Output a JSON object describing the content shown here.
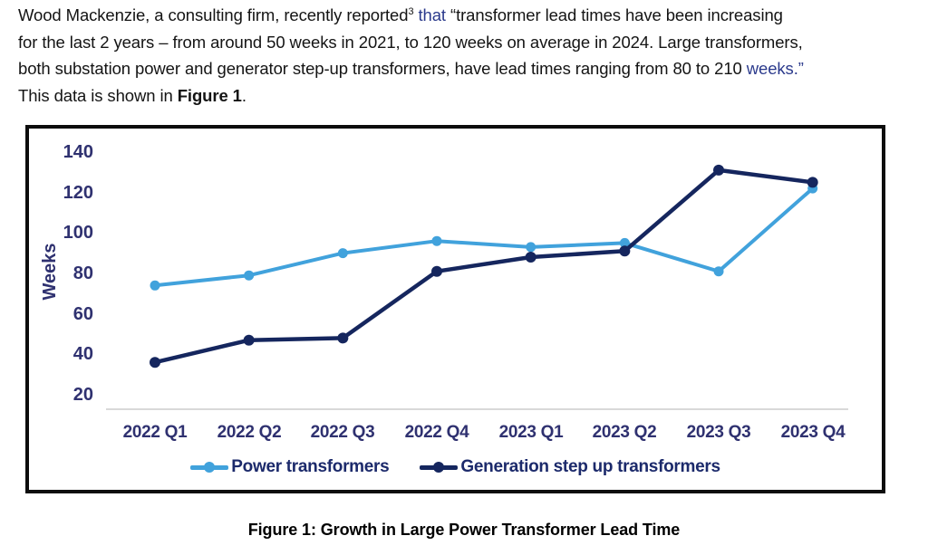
{
  "intro": {
    "line1_a": "Wood Mackenzie, a consulting firm, recently reported",
    "line1_sup": "3",
    "line1_that": " that ",
    "line1_b": "“transformer lead times have been increasing",
    "line2": "for the last 2 years – from around 50 weeks in 2021, to 120 weeks on average in 2024. Large transformers,",
    "line3_a": "both substation power and generator step-up transformers, have lead times ranging from 80 to 210 ",
    "line3_b": "weeks.”",
    "line4_a": "This data is shown in ",
    "line4_b": "Figure 1",
    "line4_c": "."
  },
  "figure": {
    "caption": "Figure 1: Growth in Large Power Transformer Lead Time"
  },
  "chart_data": {
    "type": "line",
    "title": "",
    "categories": [
      "2022 Q1",
      "2022 Q2",
      "2022 Q3",
      "2022 Q4",
      "2023 Q1",
      "2023 Q2",
      "2023 Q3",
      "2023 Q4"
    ],
    "series": [
      {
        "name": "Power transformers",
        "color": "#41a2dc",
        "values": [
          74,
          79,
          90,
          96,
          93,
          95,
          81,
          122
        ]
      },
      {
        "name": "Generation step up transformers",
        "color": "#15265e",
        "values": [
          36,
          47,
          48,
          81,
          88,
          91,
          131,
          125
        ]
      }
    ],
    "ylabel": "Weeks",
    "xlabel": "",
    "yticks": [
      140,
      120,
      100,
      80,
      60,
      40,
      20
    ],
    "ylim": [
      13,
      148
    ],
    "grid": false,
    "legend_position": "bottom"
  },
  "colors": {
    "power_line": "#41a2dc",
    "gsu_line": "#15265e",
    "axis_text": "#2f3170",
    "legend_text": "#1c2a6b",
    "axis_line": "#d9d9d9",
    "citation_blue": "#2b3a8c",
    "frame_border": "#0d0d0d"
  }
}
